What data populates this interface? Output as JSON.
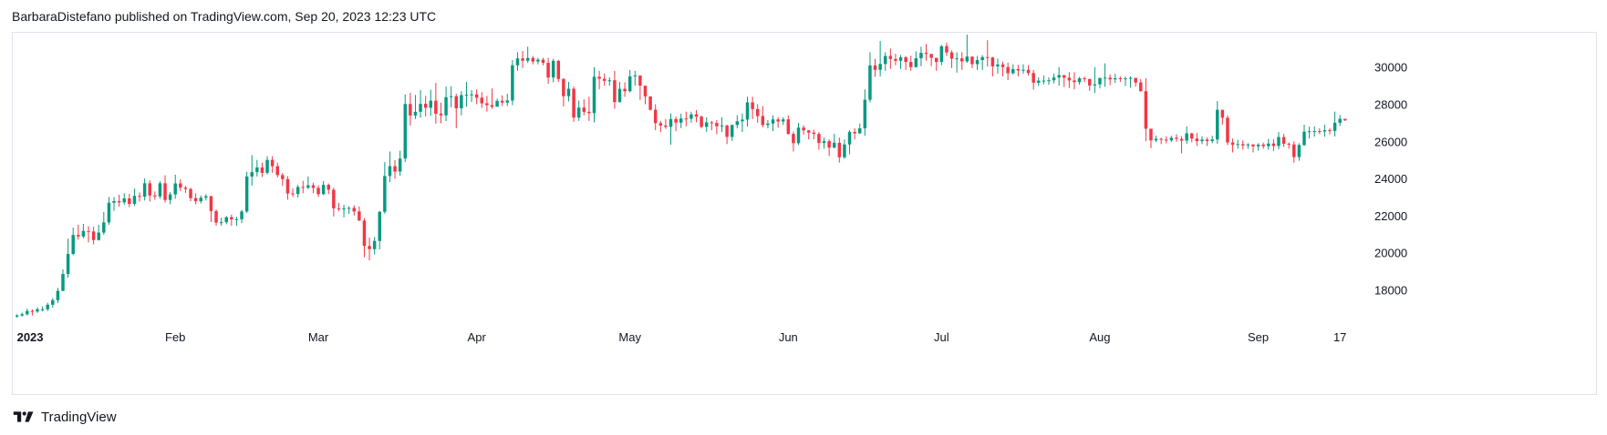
{
  "header": {
    "text": "BarbaraDistefano published on TradingView.com, Sep 20, 2023 12:23 UTC"
  },
  "brand": {
    "text": "TradingView",
    "logo_icon": "tradingview-logo-icon"
  },
  "colors": {
    "up": "#089981",
    "down": "#f23645",
    "text": "#131722",
    "border": "#e0e3eb"
  },
  "chart_data": {
    "type": "candlestick",
    "title": "",
    "interval": "1D",
    "ylim": [
      16400,
      31900
    ],
    "x_range": [
      "2022-12-31",
      "2023-09-20"
    ],
    "y_ticks": [
      18000,
      20000,
      22000,
      24000,
      26000,
      28000,
      30000
    ],
    "x_ticks": [
      {
        "date": "2023-01-01",
        "label": "2023",
        "bold": true
      },
      {
        "date": "2023-02-01",
        "label": "Feb"
      },
      {
        "date": "2023-03-01",
        "label": "Mar"
      },
      {
        "date": "2023-04-01",
        "label": "Apr"
      },
      {
        "date": "2023-05-01",
        "label": "May"
      },
      {
        "date": "2023-06-01",
        "label": "Jun"
      },
      {
        "date": "2023-07-01",
        "label": "Jul"
      },
      {
        "date": "2023-08-01",
        "label": "Aug"
      },
      {
        "date": "2023-09-01",
        "label": "Sep"
      },
      {
        "date": "2023-09-17",
        "label": "17"
      }
    ],
    "start_date": "2023-01-01",
    "close": [
      16610,
      16680,
      16860,
      16830,
      16950,
      16950,
      17190,
      17440,
      17940,
      18850,
      19930,
      20950,
      20870,
      21170,
      21140,
      20680,
      21080,
      21630,
      22690,
      22780,
      22710,
      22920,
      22630,
      23060,
      23020,
      23740,
      23080,
      23030,
      23740,
      22840,
      23140,
      23730,
      23500,
      23430,
      22940,
      22770,
      22960,
      23040,
      22240,
      21620,
      21640,
      21910,
      21790,
      21800,
      22220,
      24100,
      24340,
      24590,
      24300,
      25000,
      24660,
      24180,
      23960,
      23190,
      23160,
      23540,
      23500,
      23630,
      23490,
      23150,
      23650,
      23390,
      22390,
      22360,
      22380,
      22410,
      22220,
      21730,
      20360,
      20190,
      20630,
      22200,
      24130,
      24660,
      24370,
      25070,
      28010,
      27390,
      27590,
      28020,
      27810,
      28190,
      27490,
      27400,
      28380,
      28430,
      27780,
      28490,
      28510,
      28530,
      28350,
      28050,
      27950,
      27860,
      28180,
      28090,
      28200,
      30100,
      30470,
      30340,
      30490,
      30300,
      30400,
      30230,
      29440,
      30340,
      29360,
      28430,
      28830,
      27280,
      27820,
      27590,
      27520,
      29480,
      29370,
      29260,
      29290,
      28110,
      28830,
      28700,
      29500,
      29550,
      29000,
      28420,
      27700,
      26980,
      26850,
      26780,
      27200,
      27010,
      27230,
      27220,
      27450,
      27330,
      26780,
      27020,
      26990,
      26810,
      26850,
      26240,
      26880,
      27080,
      27170,
      28100,
      27740,
      27360,
      26880,
      26960,
      27180,
      27070,
      27180,
      26400,
      25900,
      26740,
      26590,
      26470,
      26400,
      25910,
      26010,
      25660,
      25920,
      25140,
      25830,
      26510,
      26430,
      26700,
      28240,
      30090,
      29850,
      30170,
      30600,
      30440,
      30340,
      30530,
      30280,
      30000,
      30480,
      30770,
      30710,
      30500,
      30280,
      31130,
      30790,
      30450,
      30470,
      30310,
      30570,
      30160,
      30380,
      30540,
      30520,
      30040,
      30140,
      30000,
      29670,
      29890,
      29820,
      29850,
      29680,
      29160,
      29270,
      29270,
      29290,
      29440,
      29570,
      29430,
      29280,
      29190,
      29400,
      29360,
      29010,
      29070,
      29420,
      29430,
      29340,
      29400,
      29370,
      29390,
      29420,
      29170,
      28700,
      26680,
      26050,
      26130,
      26090,
      26050,
      26190,
      26130,
      26040,
      26430,
      26150,
      26010,
      26090,
      26010,
      26100,
      27700,
      27270,
      25940,
      25810,
      25850,
      25780,
      25830,
      25730,
      25820,
      25740,
      25880,
      25750,
      26230,
      25870,
      25830,
      25150,
      25800,
      26520,
      26540,
      26550,
      26530,
      26600,
      26560,
      27000,
      27210,
      27130
    ],
    "wicks": [
      [
        16490,
        16680
      ],
      [
        16550,
        16770
      ],
      [
        16610,
        16980
      ],
      [
        16610,
        16950
      ],
      [
        16750,
        17050
      ],
      [
        16830,
        17100
      ],
      [
        16850,
        17300
      ],
      [
        17030,
        17550
      ],
      [
        17280,
        18100
      ],
      [
        17920,
        19100
      ],
      [
        18650,
        20750
      ],
      [
        19860,
        21350
      ],
      [
        20700,
        21500
      ],
      [
        20780,
        21550
      ],
      [
        20550,
        21420
      ],
      [
        20450,
        21400
      ],
      [
        20650,
        21500
      ],
      [
        20960,
        22200
      ],
      [
        21500,
        23000
      ],
      [
        22250,
        23000
      ],
      [
        22480,
        23120
      ],
      [
        22580,
        23200
      ],
      [
        22450,
        23160
      ],
      [
        22520,
        23450
      ],
      [
        22750,
        23250
      ],
      [
        22810,
        24000
      ],
      [
        22750,
        23900
      ],
      [
        22850,
        23300
      ],
      [
        22900,
        23850
      ],
      [
        22700,
        24170
      ],
      [
        22600,
        23260
      ],
      [
        22900,
        24200
      ],
      [
        23320,
        23950
      ],
      [
        23220,
        23600
      ],
      [
        22770,
        23500
      ],
      [
        22600,
        23200
      ],
      [
        22650,
        23090
      ],
      [
        22810,
        23150
      ],
      [
        21650,
        23070
      ],
      [
        21450,
        22330
      ],
      [
        21450,
        21890
      ],
      [
        21530,
        21970
      ],
      [
        21450,
        22050
      ],
      [
        21440,
        21930
      ],
      [
        21600,
        22300
      ],
      [
        22130,
        24360
      ],
      [
        23610,
        25250
      ],
      [
        24100,
        25000
      ],
      [
        24080,
        24850
      ],
      [
        24210,
        25200
      ],
      [
        24300,
        25200
      ],
      [
        24050,
        24850
      ],
      [
        23600,
        24300
      ],
      [
        22850,
        24120
      ],
      [
        23000,
        23460
      ],
      [
        22980,
        23650
      ],
      [
        23200,
        23870
      ],
      [
        23420,
        24100
      ],
      [
        23200,
        23770
      ],
      [
        23000,
        23630
      ],
      [
        23110,
        23860
      ],
      [
        23150,
        23730
      ],
      [
        21950,
        23500
      ],
      [
        22230,
        22680
      ],
      [
        21900,
        22580
      ],
      [
        22090,
        22500
      ],
      [
        22000,
        22550
      ],
      [
        21710,
        22480
      ],
      [
        19750,
        21860
      ],
      [
        19580,
        20810
      ],
      [
        19900,
        20850
      ],
      [
        20180,
        22250
      ],
      [
        22100,
        24880
      ],
      [
        23800,
        25450
      ],
      [
        23980,
        24990
      ],
      [
        24150,
        25500
      ],
      [
        24890,
        28520
      ],
      [
        26850,
        28620
      ],
      [
        27200,
        28500
      ],
      [
        27270,
        28760
      ],
      [
        27340,
        28450
      ],
      [
        27370,
        28780
      ],
      [
        26950,
        29150
      ],
      [
        26970,
        28080
      ],
      [
        27090,
        28950
      ],
      [
        27830,
        28970
      ],
      [
        26700,
        28560
      ],
      [
        27400,
        28700
      ],
      [
        27870,
        29200
      ],
      [
        28120,
        28760
      ],
      [
        28000,
        28800
      ],
      [
        27800,
        28650
      ],
      [
        27600,
        28450
      ],
      [
        27750,
        28850
      ],
      [
        27880,
        28300
      ],
      [
        27900,
        28480
      ],
      [
        27900,
        28560
      ],
      [
        27950,
        30380
      ],
      [
        29800,
        30800
      ],
      [
        29950,
        30870
      ],
      [
        30220,
        31100
      ],
      [
        30150,
        30600
      ],
      [
        30150,
        30510
      ],
      [
        30100,
        30500
      ],
      [
        29100,
        30500
      ],
      [
        29180,
        30450
      ],
      [
        29200,
        30380
      ],
      [
        27880,
        29400
      ],
      [
        28150,
        29200
      ],
      [
        27050,
        28950
      ],
      [
        27100,
        28200
      ],
      [
        27400,
        28260
      ],
      [
        27100,
        28400
      ],
      [
        27020,
        30000
      ],
      [
        28800,
        29800
      ],
      [
        29000,
        29650
      ],
      [
        29000,
        29450
      ],
      [
        27750,
        29800
      ],
      [
        28100,
        29200
      ],
      [
        28400,
        29180
      ],
      [
        28630,
        29850
      ],
      [
        29000,
        29800
      ],
      [
        28230,
        29170
      ],
      [
        28000,
        28890
      ],
      [
        27660,
        28400
      ],
      [
        26600,
        28000
      ],
      [
        26500,
        27100
      ],
      [
        26670,
        27200
      ],
      [
        25820,
        27500
      ],
      [
        26540,
        27330
      ],
      [
        26710,
        27490
      ],
      [
        26810,
        27600
      ],
      [
        27000,
        27600
      ],
      [
        27030,
        27680
      ],
      [
        26700,
        27390
      ],
      [
        26510,
        27290
      ],
      [
        26600,
        27100
      ],
      [
        26380,
        27140
      ],
      [
        26500,
        27300
      ],
      [
        25850,
        26900
      ],
      [
        26020,
        26900
      ],
      [
        26700,
        27400
      ],
      [
        26500,
        27500
      ],
      [
        26800,
        28400
      ],
      [
        27200,
        28400
      ],
      [
        27000,
        28000
      ],
      [
        26750,
        27900
      ],
      [
        26700,
        27150
      ],
      [
        26550,
        27400
      ],
      [
        26730,
        27300
      ],
      [
        26880,
        27300
      ],
      [
        26350,
        27400
      ],
      [
        25450,
        26520
      ],
      [
        25800,
        26990
      ],
      [
        26360,
        26860
      ],
      [
        26100,
        26600
      ],
      [
        26110,
        26630
      ],
      [
        25550,
        26500
      ],
      [
        25600,
        26200
      ],
      [
        25200,
        26110
      ],
      [
        25630,
        26400
      ],
      [
        24850,
        26200
      ],
      [
        25050,
        26100
      ],
      [
        25300,
        26600
      ],
      [
        26100,
        26700
      ],
      [
        26400,
        26960
      ],
      [
        26300,
        28800
      ],
      [
        28100,
        30800
      ],
      [
        29480,
        30450
      ],
      [
        29500,
        31400
      ],
      [
        29800,
        30800
      ],
      [
        29900,
        31000
      ],
      [
        30100,
        30720
      ],
      [
        29900,
        30650
      ],
      [
        29850,
        30600
      ],
      [
        29800,
        30610
      ],
      [
        29980,
        30850
      ],
      [
        30050,
        31100
      ],
      [
        30350,
        31250
      ],
      [
        30050,
        30700
      ],
      [
        29800,
        30500
      ],
      [
        30100,
        31180
      ],
      [
        30600,
        31330
      ],
      [
        29950,
        30900
      ],
      [
        29700,
        30800
      ],
      [
        29850,
        30800
      ],
      [
        30230,
        31750
      ],
      [
        29950,
        30500
      ],
      [
        29850,
        30600
      ],
      [
        29850,
        30650
      ],
      [
        30030,
        31450
      ],
      [
        29500,
        30550
      ],
      [
        29650,
        30460
      ],
      [
        29500,
        30290
      ],
      [
        29300,
        30250
      ],
      [
        29600,
        30150
      ],
      [
        29500,
        30120
      ],
      [
        29650,
        30150
      ],
      [
        29550,
        30100
      ],
      [
        28780,
        29850
      ],
      [
        28980,
        29450
      ],
      [
        29070,
        29550
      ],
      [
        29050,
        29450
      ],
      [
        29120,
        29650
      ],
      [
        29000,
        30000
      ],
      [
        28930,
        29450
      ],
      [
        28870,
        29730
      ],
      [
        28800,
        29720
      ],
      [
        29050,
        29470
      ],
      [
        29190,
        29490
      ],
      [
        28720,
        29360
      ],
      [
        28600,
        30000
      ],
      [
        28850,
        29320
      ],
      [
        28940,
        30200
      ],
      [
        29030,
        29610
      ],
      [
        29150,
        29640
      ],
      [
        29200,
        29500
      ],
      [
        28980,
        29480
      ],
      [
        28880,
        29500
      ],
      [
        28950,
        29400
      ],
      [
        28680,
        29350
      ],
      [
        26000,
        29400
      ],
      [
        25630,
        26600
      ],
      [
        25960,
        26300
      ],
      [
        25850,
        26200
      ],
      [
        25890,
        26260
      ],
      [
        25960,
        26300
      ],
      [
        25980,
        26380
      ],
      [
        25350,
        26280
      ],
      [
        25870,
        26800
      ],
      [
        25950,
        26450
      ],
      [
        25750,
        26450
      ],
      [
        25850,
        26280
      ],
      [
        25750,
        26210
      ],
      [
        25900,
        26300
      ],
      [
        25870,
        28170
      ],
      [
        26900,
        27600
      ],
      [
        25800,
        27400
      ],
      [
        25400,
        26150
      ],
      [
        25600,
        26080
      ],
      [
        25550,
        26050
      ],
      [
        25600,
        25900
      ],
      [
        25400,
        25850
      ],
      [
        25500,
        25900
      ],
      [
        25600,
        25930
      ],
      [
        25550,
        26130
      ],
      [
        25480,
        26120
      ],
      [
        25570,
        26500
      ],
      [
        25700,
        26400
      ],
      [
        25600,
        25940
      ],
      [
        24850,
        26000
      ],
      [
        24950,
        25900
      ],
      [
        25740,
        26900
      ],
      [
        26150,
        26790
      ],
      [
        26250,
        26800
      ],
      [
        26390,
        26700
      ],
      [
        26250,
        26900
      ],
      [
        26380,
        26700
      ],
      [
        26260,
        27600
      ],
      [
        26830,
        27420
      ],
      [
        27100,
        27200
      ]
    ]
  }
}
